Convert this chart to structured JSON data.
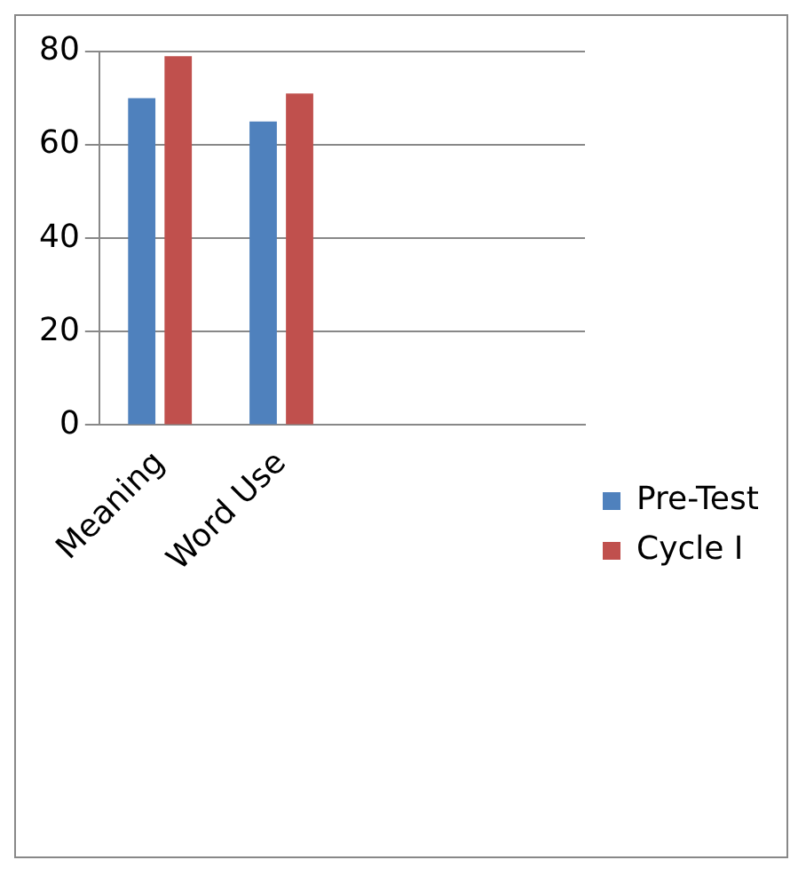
{
  "chart_data": {
    "type": "bar",
    "categories": [
      "Meaning",
      "Word Use",
      null,
      null
    ],
    "series": [
      {
        "name": "Pre-Test",
        "color": "#4f81bd",
        "values": [
          70,
          65,
          null,
          null
        ]
      },
      {
        "name": "Cycle I",
        "color": "#c0504d",
        "values": [
          79,
          71,
          null,
          null
        ]
      }
    ],
    "ylim": [
      0,
      80
    ],
    "yticks": [
      0,
      20,
      40,
      60,
      80
    ],
    "grid": "y",
    "legend": "right"
  }
}
